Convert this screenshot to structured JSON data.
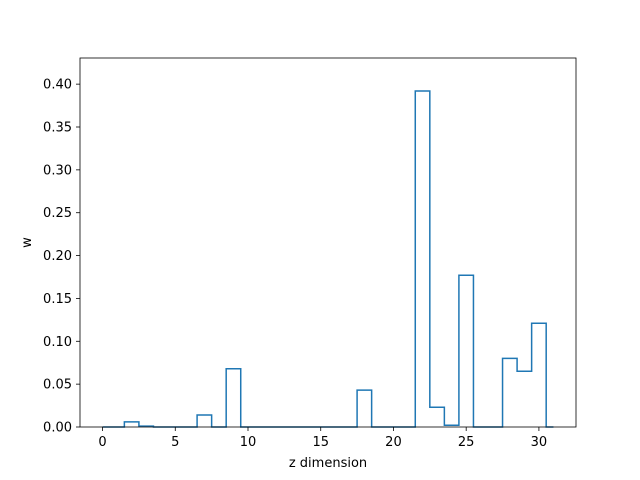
{
  "chart_data": {
    "type": "bar",
    "style": "step-outline",
    "xlabel": "z dimension",
    "ylabel": "w",
    "xlim": [
      -1.55,
      32.55
    ],
    "ylim": [
      0,
      0.4305
    ],
    "x_ticks": [
      0,
      5,
      10,
      15,
      20,
      25,
      30
    ],
    "y_ticks": [
      0.0,
      0.05,
      0.1,
      0.15,
      0.2,
      0.25,
      0.3,
      0.35,
      0.4
    ],
    "y_tick_labels": [
      "0.00",
      "0.05",
      "0.10",
      "0.15",
      "0.20",
      "0.25",
      "0.30",
      "0.35",
      "0.40"
    ],
    "x_tick_labels": [
      "0",
      "5",
      "10",
      "15",
      "20",
      "25",
      "30"
    ],
    "x": [
      0,
      1,
      2,
      3,
      4,
      5,
      6,
      7,
      8,
      9,
      10,
      11,
      12,
      13,
      14,
      15,
      16,
      17,
      18,
      19,
      20,
      21,
      22,
      23,
      24,
      25,
      26,
      27,
      28,
      29,
      30,
      31
    ],
    "values": [
      0.0,
      0.0,
      0.006,
      0.001,
      0.0,
      0.0,
      0.0,
      0.014,
      0.0,
      0.068,
      0.0,
      0.0,
      0.0,
      0.0,
      0.0,
      0.0,
      0.0,
      0.0,
      0.043,
      0.0,
      0.0,
      0.0,
      0.392,
      0.023,
      0.002,
      0.177,
      0.0,
      0.0,
      0.08,
      0.065,
      0.121,
      0.0
    ],
    "line_color": "#1f77b4",
    "grid": false
  }
}
